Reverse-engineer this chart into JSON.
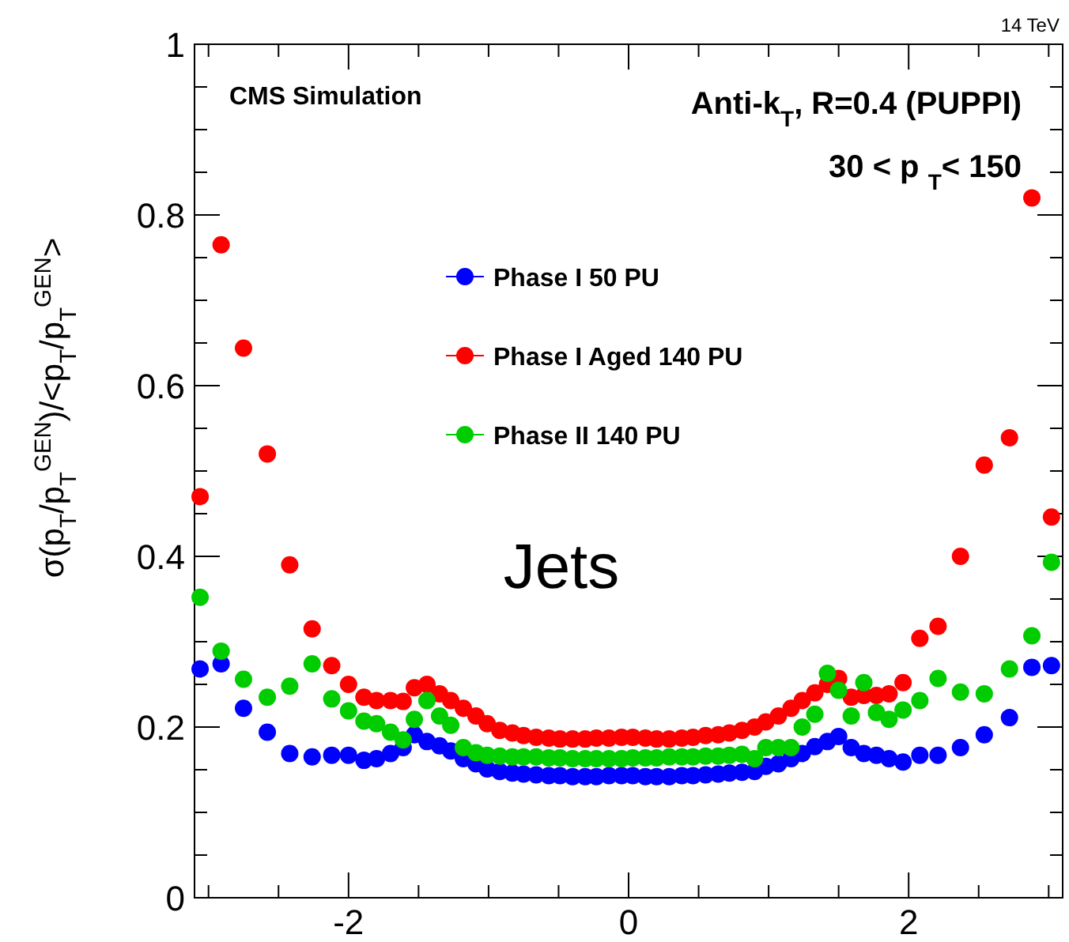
{
  "chart_data": {
    "type": "scatter",
    "ylabel": "σ(p$_{T}$/p$_{T}$$^{GEN}$)/<p$_{T}$/p$_{T}$$^{GEN}$>",
    "annotations": [
      "14 TeV",
      "CMS Simulation",
      "Anti-k$_{T}$, R=0.4 (PUPPI)",
      "30 < p $_{T}$< 150",
      "Jets"
    ],
    "x": [
      -3.06,
      -2.91,
      -2.75,
      -2.58,
      -2.42,
      -2.26,
      -2.12,
      -2.0,
      -1.89,
      -1.8,
      -1.7,
      -1.61,
      -1.53,
      -1.44,
      -1.35,
      -1.27,
      -1.18,
      -1.09,
      -1.01,
      -0.92,
      -0.83,
      -0.75,
      -0.66,
      -0.57,
      -0.49,
      -0.4,
      -0.31,
      -0.23,
      -0.14,
      -0.05,
      0.03,
      0.12,
      0.2,
      0.29,
      0.38,
      0.46,
      0.55,
      0.64,
      0.72,
      0.81,
      0.9,
      0.98,
      1.07,
      1.16,
      1.24,
      1.33,
      1.42,
      1.5,
      1.59,
      1.68,
      1.77,
      1.86,
      1.96,
      2.08,
      2.21,
      2.37,
      2.54,
      2.72,
      2.88,
      3.02
    ],
    "series": [
      {
        "name": "Phase I 50 PU",
        "color": "#0000ff",
        "values": [
          0.268,
          0.274,
          0.222,
          0.194,
          0.169,
          0.165,
          0.167,
          0.167,
          0.161,
          0.163,
          0.169,
          0.176,
          0.191,
          0.183,
          0.178,
          0.172,
          0.163,
          0.157,
          0.151,
          0.148,
          0.146,
          0.145,
          0.144,
          0.143,
          0.143,
          0.142,
          0.142,
          0.142,
          0.143,
          0.143,
          0.143,
          0.142,
          0.142,
          0.142,
          0.143,
          0.143,
          0.144,
          0.145,
          0.146,
          0.147,
          0.148,
          0.154,
          0.157,
          0.163,
          0.169,
          0.177,
          0.183,
          0.189,
          0.176,
          0.169,
          0.167,
          0.163,
          0.159,
          0.167,
          0.167,
          0.176,
          0.191,
          0.211,
          0.27,
          0.272
        ]
      },
      {
        "name": "Phase I Aged 140 PU",
        "color": "#ff0000",
        "values": [
          0.47,
          0.765,
          0.644,
          0.52,
          0.39,
          0.315,
          0.272,
          0.25,
          0.235,
          0.231,
          0.231,
          0.23,
          0.246,
          0.25,
          0.239,
          0.231,
          0.222,
          0.213,
          0.204,
          0.196,
          0.193,
          0.19,
          0.188,
          0.187,
          0.186,
          0.186,
          0.186,
          0.187,
          0.187,
          0.188,
          0.188,
          0.187,
          0.186,
          0.186,
          0.187,
          0.188,
          0.19,
          0.191,
          0.193,
          0.196,
          0.2,
          0.206,
          0.213,
          0.222,
          0.231,
          0.24,
          0.25,
          0.257,
          0.235,
          0.237,
          0.237,
          0.239,
          0.252,
          0.304,
          0.318,
          0.4,
          0.507,
          0.539,
          0.82,
          0.446
        ]
      },
      {
        "name": "Phase II 140 PU",
        "color": "#00cc00",
        "values": [
          0.352,
          0.289,
          0.256,
          0.235,
          0.248,
          0.274,
          0.233,
          0.219,
          0.207,
          0.204,
          0.194,
          0.185,
          0.209,
          0.231,
          0.213,
          0.202,
          0.176,
          0.17,
          0.167,
          0.166,
          0.165,
          0.165,
          0.165,
          0.164,
          0.164,
          0.163,
          0.163,
          0.163,
          0.163,
          0.163,
          0.164,
          0.164,
          0.164,
          0.165,
          0.165,
          0.165,
          0.166,
          0.166,
          0.167,
          0.168,
          0.163,
          0.176,
          0.176,
          0.176,
          0.2,
          0.215,
          0.263,
          0.243,
          0.213,
          0.252,
          0.217,
          0.209,
          0.22,
          0.231,
          0.257,
          0.241,
          0.239,
          0.268,
          0.307,
          0.393
        ]
      }
    ],
    "xlim": [
      -3.1,
      3.1
    ],
    "xticks": [
      {
        "value": -3,
        "label": null
      },
      {
        "value": -2.5,
        "label": null
      },
      -2,
      {
        "value": -1.5,
        "label": null
      },
      {
        "value": -1,
        "label": null
      },
      {
        "value": -0.5,
        "label": null
      },
      0,
      {
        "value": 0.5,
        "label": null
      },
      {
        "value": 1,
        "label": null
      },
      {
        "value": 1.5,
        "label": null
      },
      2,
      {
        "value": 2.5,
        "label": null
      },
      {
        "value": 3,
        "label": null
      }
    ],
    "ylim": [
      0,
      1
    ],
    "yticks": [
      0,
      {
        "value": 0.05,
        "label": null
      },
      {
        "value": 0.1,
        "label": null
      },
      {
        "value": 0.15,
        "label": null
      },
      0.2,
      {
        "value": 0.25,
        "label": null
      },
      {
        "value": 0.3,
        "label": null
      },
      {
        "value": 0.35,
        "label": null
      },
      0.4,
      {
        "value": 0.45,
        "label": null
      },
      {
        "value": 0.5,
        "label": null
      },
      {
        "value": 0.55,
        "label": null
      },
      0.6,
      {
        "value": 0.65,
        "label": null
      },
      {
        "value": 0.7,
        "label": null
      },
      {
        "value": 0.75,
        "label": null
      },
      0.8,
      {
        "value": 0.85,
        "label": null
      },
      {
        "value": 0.9,
        "label": null
      },
      {
        "value": 0.95,
        "label": null
      },
      1
    ],
    "legend": "top",
    "marker": "circle",
    "grid": false
  }
}
